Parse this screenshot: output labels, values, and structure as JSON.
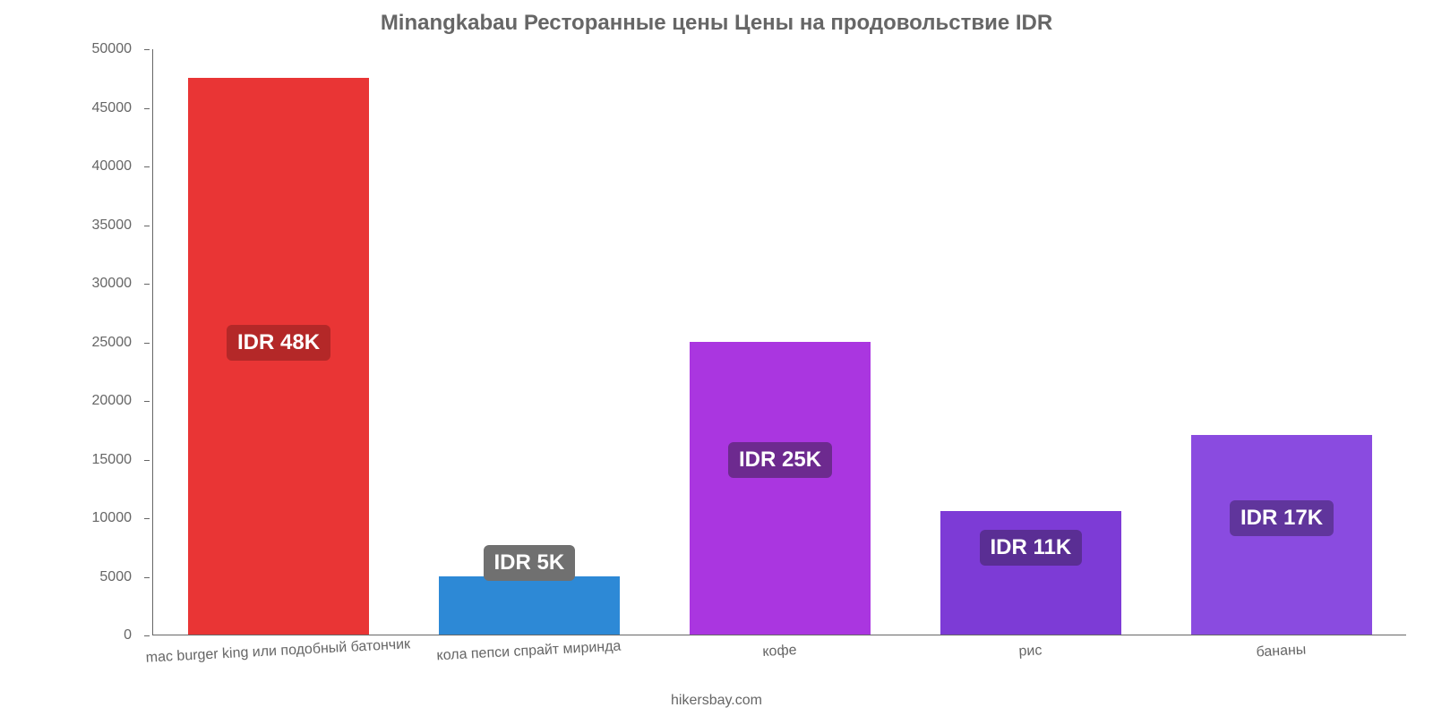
{
  "chart": {
    "type": "bar",
    "title": "Minangkabau Ресторанные цены Цены на продовольствие IDR",
    "title_color": "#666666",
    "title_fontsize": 24,
    "background_color": "#ffffff",
    "axis_color": "#666666",
    "label_color": "#666666",
    "tick_fontsize": 16,
    "xlabel_fontsize": 16,
    "xlabel_rotation_deg": -3,
    "badge_fontsize": 24,
    "ylim": [
      0,
      50000
    ],
    "y_ticks": [
      0,
      5000,
      10000,
      15000,
      20000,
      25000,
      30000,
      35000,
      40000,
      45000,
      50000
    ],
    "bar_width_ratio": 0.72,
    "bars": [
      {
        "category": "mac burger king или подобный батончик",
        "value": 47500,
        "color": "#e93535",
        "badge_text": "IDR 48K",
        "badge_bg": "#b42828",
        "badge_y": 25000
      },
      {
        "category": "кола пепси спрайт миринда",
        "value": 5000,
        "color": "#2d89d6",
        "badge_text": "IDR 5K",
        "badge_bg": "#707070",
        "badge_y": 6200
      },
      {
        "category": "кофе",
        "value": 25000,
        "color": "#aa36e0",
        "badge_text": "IDR 25K",
        "badge_bg": "#6d2a8f",
        "badge_y": 15000
      },
      {
        "category": "рис",
        "value": 10500,
        "color": "#7d3bd6",
        "badge_text": "IDR 11K",
        "badge_bg": "#5a2e94",
        "badge_y": 7500
      },
      {
        "category": "бананы",
        "value": 17000,
        "color": "#8a4be0",
        "badge_text": "IDR 17K",
        "badge_bg": "#60359c",
        "badge_y": 10000
      }
    ],
    "attribution": "hikersbay.com"
  }
}
